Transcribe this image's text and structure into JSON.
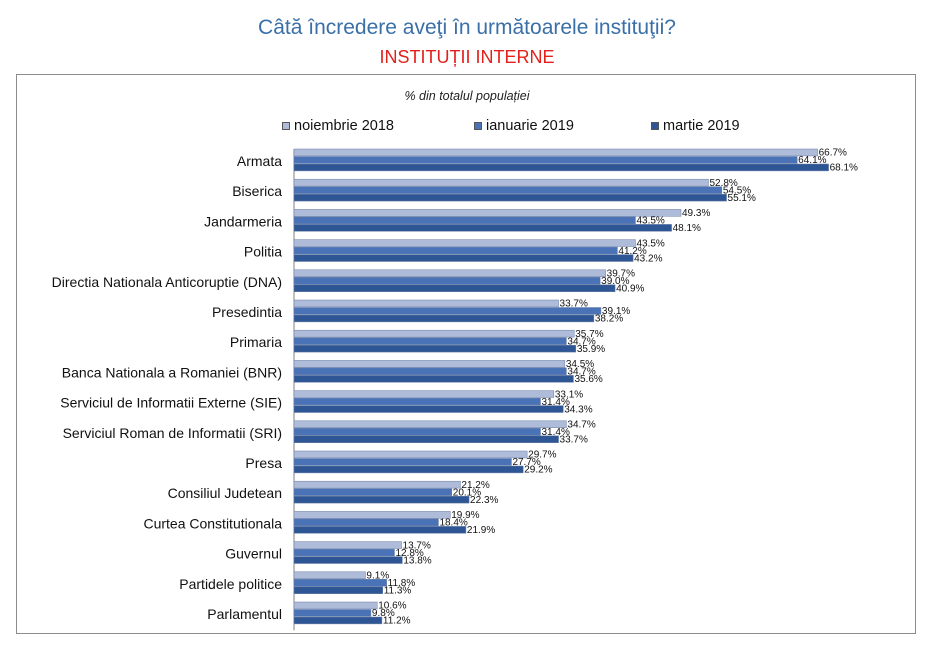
{
  "header": {
    "title": "Câtă încredere aveţi în următoarele instituţii?",
    "subtitle": "INSTITUȚII INTERNE",
    "caption": "% din totalul populației"
  },
  "colors": {
    "title": "#3a6fa8",
    "subtitle": "#e3201b",
    "series": [
      "#aebcd9",
      "#4a72b7",
      "#2e5694"
    ]
  },
  "chart_data": {
    "type": "bar",
    "orientation": "horizontal",
    "categories": [
      "Armata",
      "Biserica",
      "Jandarmeria",
      "Politia",
      "Directia Nationala Anticoruptie (DNA)",
      "Presedintia",
      "Primaria",
      "Banca Nationala a Romaniei (BNR)",
      "Serviciul de Informatii Externe (SIE)",
      "Serviciul Roman de Informatii (SRI)",
      "Presa",
      "Consiliul Judetean",
      "Curtea Constitutionala",
      "Guvernul",
      "Partidele politice",
      "Parlamentul"
    ],
    "series": [
      {
        "name": "noiembrie 2018",
        "values": [
          66.7,
          52.8,
          49.3,
          43.5,
          39.7,
          33.7,
          35.7,
          34.5,
          33.1,
          34.7,
          29.7,
          21.2,
          19.9,
          13.7,
          9.1,
          10.6
        ]
      },
      {
        "name": "ianuarie 2019",
        "values": [
          64.1,
          54.5,
          43.5,
          41.2,
          39.0,
          39.1,
          34.7,
          34.7,
          31.4,
          31.4,
          27.7,
          20.1,
          18.4,
          12.8,
          11.8,
          9.8
        ]
      },
      {
        "name": "martie 2019",
        "values": [
          68.1,
          55.1,
          48.1,
          43.2,
          40.9,
          38.2,
          35.9,
          35.6,
          34.3,
          33.7,
          29.2,
          22.3,
          21.9,
          13.8,
          11.3,
          11.2
        ]
      }
    ],
    "value_suffix": "%",
    "xlim": [
      0,
      70
    ],
    "legend_position": "top",
    "grid": false
  }
}
